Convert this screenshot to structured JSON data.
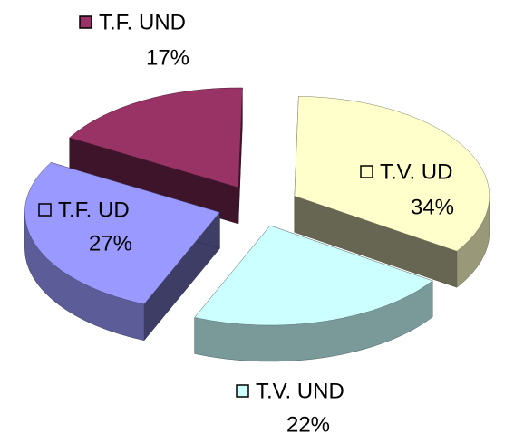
{
  "chart_data": {
    "type": "pie3d",
    "categories": [
      "T.F. UND",
      "T.V. UD",
      "T.V. UND",
      "T.F. UD"
    ],
    "values": [
      17,
      34,
      22,
      27
    ],
    "value_labels": [
      "17%",
      "34%",
      "22%",
      "27%"
    ],
    "colors": [
      "#993366",
      "#ffffcc",
      "#ccffff",
      "#9999ff"
    ]
  }
}
